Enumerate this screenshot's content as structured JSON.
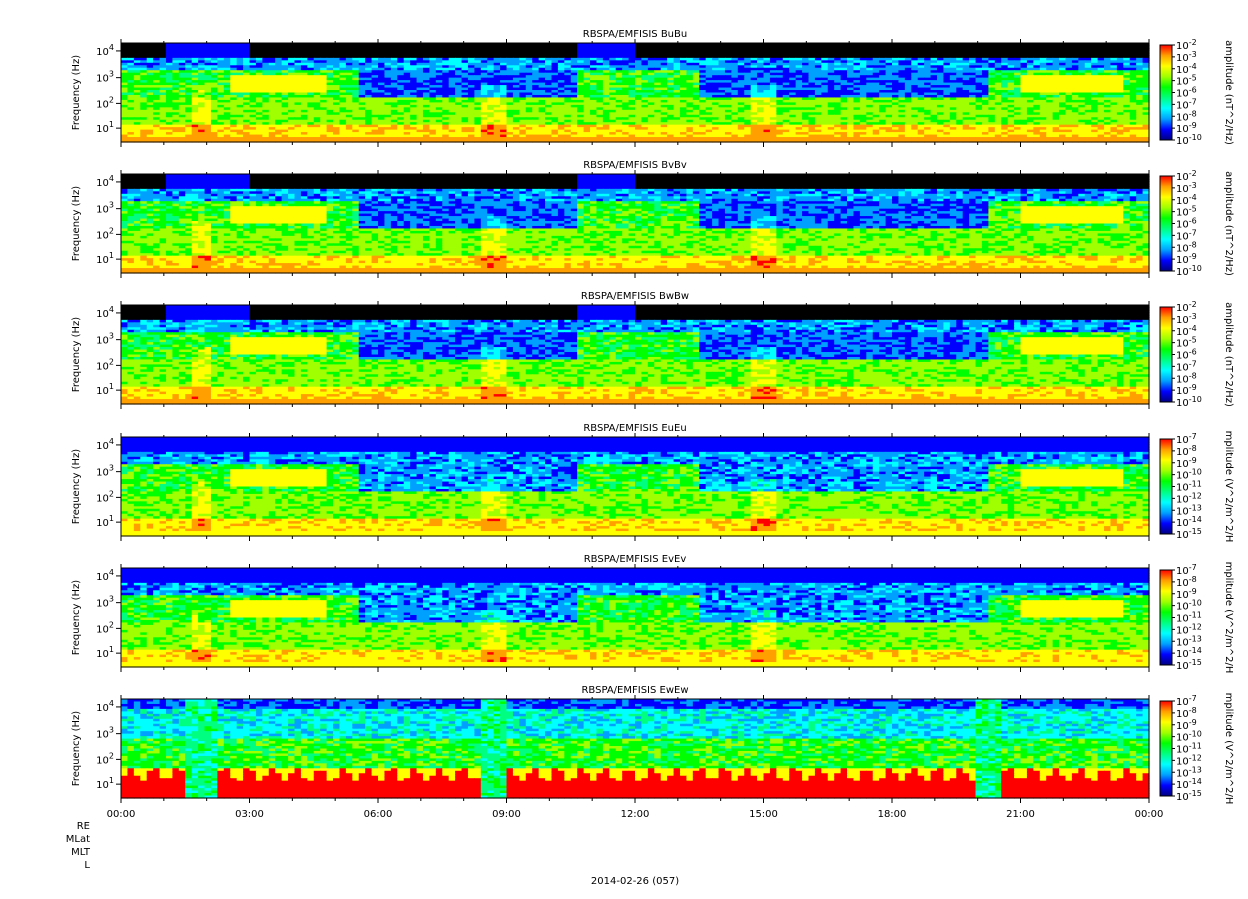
{
  "chart_data": {
    "type": "heatmap",
    "x_axis": {
      "ticks": [
        "00:00",
        "03:00",
        "06:00",
        "09:00",
        "12:00",
        "15:00",
        "18:00",
        "21:00",
        "00:00"
      ],
      "date_label": "2014-02-26 (057)",
      "ephemeris_labels": [
        "RE",
        "MLat",
        "MLT",
        "L"
      ]
    },
    "y_axis": {
      "label": "Frequency (Hz)",
      "scale": "log",
      "ticks": [
        "10^1",
        "10^2",
        "10^3",
        "10^4"
      ]
    },
    "panels": [
      {
        "title": "RBSPA/EMFISIS  BuBu",
        "colorbar_label": "amplitude (nT^2/Hz)",
        "cb_min_exp": -10,
        "cb_max_exp": -2,
        "kind": "B",
        "floor": 0.0
      },
      {
        "title": "RBSPA/EMFISIS  BvBv",
        "colorbar_label": "amplitude (nT^2/Hz)",
        "cb_min_exp": -10,
        "cb_max_exp": -2,
        "kind": "B",
        "floor": 0.0
      },
      {
        "title": "RBSPA/EMFISIS  BwBw",
        "colorbar_label": "amplitude (nT^2/Hz)",
        "cb_min_exp": -10,
        "cb_max_exp": -2,
        "kind": "B",
        "floor": 0.0
      },
      {
        "title": "RBSPA/EMFISIS  EuEu",
        "colorbar_label": "mplitude (V^2/m^2/H",
        "cb_min_exp": -15,
        "cb_max_exp": -7,
        "kind": "E",
        "floor": 0.0
      },
      {
        "title": "RBSPA/EMFISIS  EvEv",
        "colorbar_label": "mplitude (V^2/m^2/H",
        "cb_min_exp": -15,
        "cb_max_exp": -7,
        "kind": "E",
        "floor": 0.0
      },
      {
        "title": "RBSPA/EMFISIS  EwEw",
        "colorbar_label": "mplitude (V^2/m^2/H",
        "cb_min_exp": -15,
        "cb_max_exp": -7,
        "kind": "Ew",
        "floor": 0.0
      }
    ],
    "colormap": [
      "#000080",
      "#0000ff",
      "#00a0ff",
      "#00ffff",
      "#00ff80",
      "#00ff00",
      "#a0ff00",
      "#ffff00",
      "#ffa000",
      "#ff0000"
    ]
  }
}
